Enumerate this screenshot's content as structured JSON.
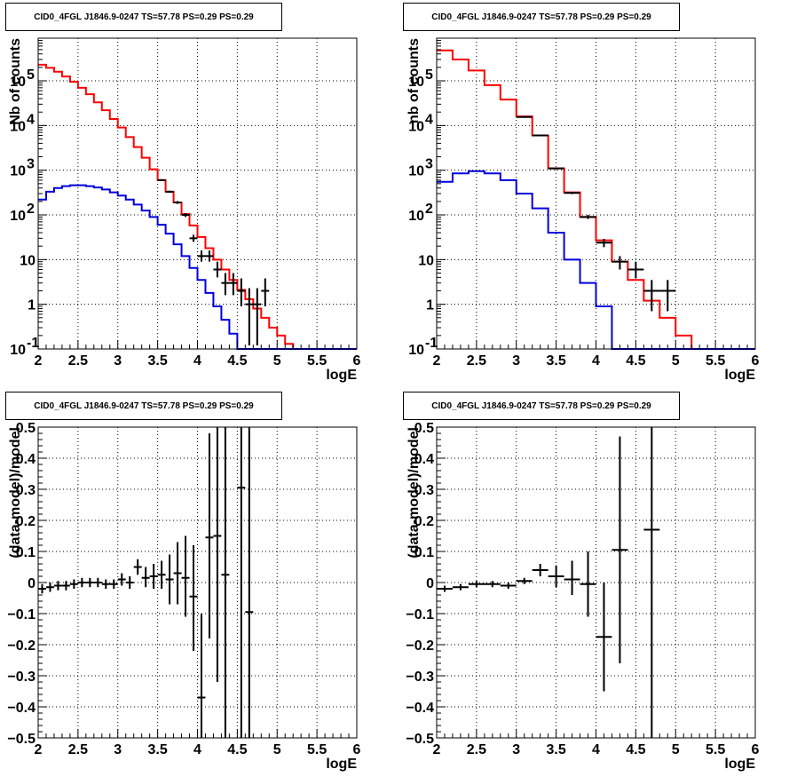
{
  "title": "CID0_4FGL J1846.9-0247 TS=57.78 PS=0.29 PS=0.29",
  "colors": {
    "model_total": "#ff0000",
    "model_source": "#0000dd",
    "data": "#000000"
  },
  "chart_data": [
    {
      "type": "line",
      "panel": "top-left",
      "title": "CID0_4FGL J1846.9-0247 TS=57.78 PS=0.29 PS=0.29",
      "xlabel": "logE",
      "ylabel": "Nb of counts",
      "xlim": [
        2,
        6
      ],
      "ylim": [
        0.1,
        900000
      ],
      "yscale": "log",
      "grid": true,
      "x_ticks": [
        "2",
        "2.5",
        "3",
        "3.5",
        "4",
        "4.5",
        "5",
        "5.5",
        "6"
      ],
      "y_ticks": [
        {
          "value": 0.1,
          "label": "10",
          "sup": "-1"
        },
        {
          "value": 1,
          "label": "1",
          "sup": ""
        },
        {
          "value": 10,
          "label": "10",
          "sup": ""
        },
        {
          "value": 100,
          "label": "10",
          "sup": "2"
        },
        {
          "value": 1000,
          "label": "10",
          "sup": "3"
        },
        {
          "value": 10000,
          "label": "10",
          "sup": "4"
        },
        {
          "value": 100000,
          "label": "10",
          "sup": "5"
        }
      ],
      "bin_edges": [
        2.0,
        2.1,
        2.2,
        2.3,
        2.4,
        2.5,
        2.6,
        2.7,
        2.8,
        2.9,
        3.0,
        3.1,
        3.2,
        3.3,
        3.4,
        3.5,
        3.6,
        3.7,
        3.8,
        3.9,
        4.0,
        4.1,
        4.2,
        4.3,
        4.4,
        4.5,
        4.6,
        4.7,
        4.8,
        4.9,
        5.0,
        5.1,
        5.2,
        5.3,
        5.4,
        5.5,
        5.6,
        5.7,
        5.8,
        5.9,
        6.0
      ],
      "series": [
        {
          "name": "",
          "color": "#ff0000",
          "style": "step",
          "values": [
            230000,
            195000,
            160000,
            125000,
            95000,
            70000,
            50000,
            33000,
            22000,
            14000,
            9000,
            5500,
            3300,
            1900,
            1050,
            600,
            330,
            190,
            105,
            58,
            32,
            18,
            10,
            6,
            3.5,
            2.1,
            1.3,
            0.8,
            0.5,
            0.3,
            0.2,
            0.13,
            0.1,
            0.1,
            0.1,
            0.1,
            0.1,
            0.1,
            0.1,
            0.1
          ]
        },
        {
          "name": "",
          "color": "#0000dd",
          "style": "step",
          "values": [
            220,
            330,
            400,
            440,
            460,
            460,
            440,
            410,
            370,
            320,
            270,
            220,
            170,
            125,
            90,
            60,
            38,
            22,
            12,
            6.5,
            3.5,
            1.8,
            0.9,
            0.45,
            0.22,
            0.1,
            0.1,
            0.1,
            0.1,
            0.1,
            0.1,
            0.1,
            0.1,
            0.1,
            0.1,
            0.1,
            0.1,
            0.1,
            0.1,
            0.1
          ]
        }
      ],
      "points": [
        {
          "x": 3.55,
          "y": 600,
          "ylo": 575,
          "yhi": 625
        },
        {
          "x": 3.65,
          "y": 330,
          "ylo": 312,
          "yhi": 348
        },
        {
          "x": 3.75,
          "y": 190,
          "ylo": 176,
          "yhi": 204
        },
        {
          "x": 3.85,
          "y": 100,
          "ylo": 90,
          "yhi": 110
        },
        {
          "x": 3.95,
          "y": 30,
          "ylo": 25,
          "yhi": 36
        },
        {
          "x": 4.05,
          "y": 12,
          "ylo": 9,
          "yhi": 16
        },
        {
          "x": 4.15,
          "y": 12,
          "ylo": 9,
          "yhi": 16
        },
        {
          "x": 4.25,
          "y": 6,
          "ylo": 4,
          "yhi": 9
        },
        {
          "x": 4.35,
          "y": 3,
          "ylo": 1.6,
          "yhi": 5
        },
        {
          "x": 4.45,
          "y": 3,
          "ylo": 1.6,
          "yhi": 5
        },
        {
          "x": 4.55,
          "y": 2,
          "ylo": 0.9,
          "yhi": 3.8
        },
        {
          "x": 4.65,
          "y": 1,
          "ylo": 0.12,
          "yhi": 2.3
        },
        {
          "x": 4.75,
          "y": 1,
          "ylo": 0.12,
          "yhi": 2.3
        },
        {
          "x": 4.85,
          "y": 2,
          "ylo": 0.9,
          "yhi": 3.8
        }
      ]
    },
    {
      "type": "line",
      "panel": "top-right",
      "title": "CID0_4FGL J1846.9-0247 TS=57.78 PS=0.29 PS=0.29",
      "xlabel": "logE",
      "ylabel": "nb of counts",
      "xlim": [
        2,
        6
      ],
      "ylim": [
        0.1,
        900000
      ],
      "yscale": "log",
      "grid": true,
      "x_ticks": [
        "2",
        "2.5",
        "3",
        "3.5",
        "4",
        "4.5",
        "5",
        "5.5",
        "6"
      ],
      "y_ticks": [
        {
          "value": 0.1,
          "label": "10",
          "sup": "-1"
        },
        {
          "value": 1,
          "label": "1",
          "sup": ""
        },
        {
          "value": 10,
          "label": "10",
          "sup": ""
        },
        {
          "value": 100,
          "label": "10",
          "sup": "2"
        },
        {
          "value": 1000,
          "label": "10",
          "sup": "3"
        },
        {
          "value": 10000,
          "label": "10",
          "sup": "4"
        },
        {
          "value": 100000,
          "label": "10",
          "sup": "5"
        }
      ],
      "bin_edges": [
        2.0,
        2.2,
        2.4,
        2.6,
        2.8,
        3.0,
        3.2,
        3.4,
        3.6,
        3.8,
        4.0,
        4.2,
        4.4,
        4.6,
        4.8,
        5.0,
        5.2,
        5.4,
        5.6,
        5.8,
        6.0
      ],
      "series": [
        {
          "name": "",
          "color": "#ff0000",
          "style": "step",
          "values": [
            480000,
            300000,
            170000,
            80000,
            38000,
            16000,
            6000,
            1100,
            320,
            90,
            27,
            9,
            3.5,
            1.2,
            0.5,
            0.2,
            0.1,
            0.1,
            0.1,
            0.1
          ]
        },
        {
          "name": "",
          "color": "#0000dd",
          "style": "step",
          "values": [
            550,
            850,
            950,
            850,
            600,
            300,
            140,
            40,
            10,
            3,
            0.9,
            0.1,
            0.1,
            0.1,
            0.1,
            0.1,
            0.1,
            0.1,
            0.1,
            0.1
          ]
        }
      ],
      "points": [
        {
          "x": 3.1,
          "y": 15500,
          "ylo": 15200,
          "yhi": 15800
        },
        {
          "x": 3.3,
          "y": 6000,
          "ylo": 5800,
          "yhi": 6200
        },
        {
          "x": 3.5,
          "y": 1100,
          "ylo": 1070,
          "yhi": 1130
        },
        {
          "x": 3.7,
          "y": 310,
          "ylo": 292,
          "yhi": 328
        },
        {
          "x": 3.9,
          "y": 90,
          "ylo": 81,
          "yhi": 100
        },
        {
          "x": 4.1,
          "y": 24,
          "ylo": 19,
          "yhi": 29
        },
        {
          "x": 4.3,
          "y": 9,
          "ylo": 6,
          "yhi": 12
        },
        {
          "x": 4.5,
          "y": 6,
          "ylo": 3.8,
          "yhi": 9
        },
        {
          "x": 4.7,
          "y": 2,
          "ylo": 0.7,
          "yhi": 3.5
        },
        {
          "x": 4.9,
          "y": 2,
          "ylo": 0.7,
          "yhi": 3.5
        }
      ]
    },
    {
      "type": "scatter",
      "panel": "bottom-left",
      "title": "CID0_4FGL J1846.9-0247 TS=57.78 PS=0.29 PS=0.29",
      "xlabel": "logE",
      "ylabel": "(data-model)/model",
      "xlim": [
        2,
        6
      ],
      "ylim": [
        -0.5,
        0.5
      ],
      "yscale": "linear",
      "grid": true,
      "x_ticks": [
        "2",
        "2.5",
        "3",
        "3.5",
        "4",
        "4.5",
        "5",
        "5.5",
        "6"
      ],
      "y_ticks": [
        {
          "value": -0.5,
          "label": "−0.5",
          "sup": ""
        },
        {
          "value": -0.4,
          "label": "−0.4",
          "sup": ""
        },
        {
          "value": -0.3,
          "label": "−0.3",
          "sup": ""
        },
        {
          "value": -0.2,
          "label": "−0.2",
          "sup": ""
        },
        {
          "value": -0.1,
          "label": "−0.1",
          "sup": ""
        },
        {
          "value": 0,
          "label": "0",
          "sup": ""
        },
        {
          "value": 0.1,
          "label": "0.1",
          "sup": ""
        },
        {
          "value": 0.2,
          "label": "0.2",
          "sup": ""
        },
        {
          "value": 0.3,
          "label": "0.3",
          "sup": ""
        },
        {
          "value": 0.4,
          "label": "0.4",
          "sup": ""
        },
        {
          "value": 0.5,
          "label": "0.5",
          "sup": ""
        }
      ],
      "xerr": 0.05,
      "points": [
        {
          "x": 2.05,
          "y": -0.02,
          "ylo": -0.035,
          "yhi": -0.005
        },
        {
          "x": 2.15,
          "y": -0.015,
          "ylo": -0.03,
          "yhi": 0.0
        },
        {
          "x": 2.25,
          "y": -0.01,
          "ylo": -0.025,
          "yhi": 0.005
        },
        {
          "x": 2.35,
          "y": -0.01,
          "ylo": -0.025,
          "yhi": 0.005
        },
        {
          "x": 2.45,
          "y": -0.005,
          "ylo": -0.02,
          "yhi": 0.01
        },
        {
          "x": 2.55,
          "y": 0.0,
          "ylo": -0.015,
          "yhi": 0.015
        },
        {
          "x": 2.65,
          "y": 0.0,
          "ylo": -0.015,
          "yhi": 0.015
        },
        {
          "x": 2.75,
          "y": 0.0,
          "ylo": -0.015,
          "yhi": 0.015
        },
        {
          "x": 2.85,
          "y": -0.005,
          "ylo": -0.02,
          "yhi": 0.01
        },
        {
          "x": 2.95,
          "y": -0.005,
          "ylo": -0.02,
          "yhi": 0.01
        },
        {
          "x": 3.05,
          "y": 0.01,
          "ylo": -0.01,
          "yhi": 0.03
        },
        {
          "x": 3.15,
          "y": 0.0,
          "ylo": -0.02,
          "yhi": 0.02
        },
        {
          "x": 3.25,
          "y": 0.05,
          "ylo": 0.025,
          "yhi": 0.075
        },
        {
          "x": 3.35,
          "y": 0.015,
          "ylo": -0.015,
          "yhi": 0.05
        },
        {
          "x": 3.45,
          "y": 0.02,
          "ylo": -0.02,
          "yhi": 0.06
        },
        {
          "x": 3.55,
          "y": 0.025,
          "ylo": -0.02,
          "yhi": 0.07
        },
        {
          "x": 3.65,
          "y": 0.01,
          "ylo": -0.07,
          "yhi": 0.09
        },
        {
          "x": 3.75,
          "y": 0.03,
          "ylo": -0.07,
          "yhi": 0.13
        },
        {
          "x": 3.85,
          "y": 0.015,
          "ylo": -0.11,
          "yhi": 0.15
        },
        {
          "x": 3.95,
          "y": -0.045,
          "ylo": -0.22,
          "yhi": 0.12
        },
        {
          "x": 4.05,
          "y": -0.37,
          "ylo": -0.5,
          "yhi": -0.1
        },
        {
          "x": 4.15,
          "y": 0.145,
          "ylo": -0.18,
          "yhi": 0.48
        },
        {
          "x": 4.25,
          "y": 0.15,
          "ylo": -0.32,
          "yhi": 0.5
        },
        {
          "x": 4.35,
          "y": 0.025,
          "ylo": -0.5,
          "yhi": 0.5
        },
        {
          "x": 4.55,
          "y": 0.305,
          "ylo": -0.5,
          "yhi": 0.5
        },
        {
          "x": 4.65,
          "y": -0.095,
          "ylo": -0.5,
          "yhi": 0.5
        }
      ]
    },
    {
      "type": "scatter",
      "panel": "bottom-right",
      "title": "CID0_4FGL J1846.9-0247 TS=57.78 PS=0.29 PS=0.29",
      "xlabel": "logE",
      "ylabel": "(data-model)/model",
      "xlim": [
        2,
        6
      ],
      "ylim": [
        -0.5,
        0.5
      ],
      "yscale": "linear",
      "grid": true,
      "x_ticks": [
        "2",
        "2.5",
        "3",
        "3.5",
        "4",
        "4.5",
        "5",
        "5.5",
        "6"
      ],
      "y_ticks": [
        {
          "value": -0.5,
          "label": "−0.5",
          "sup": ""
        },
        {
          "value": -0.4,
          "label": "−0.4",
          "sup": ""
        },
        {
          "value": -0.3,
          "label": "−0.3",
          "sup": ""
        },
        {
          "value": -0.2,
          "label": "−0.2",
          "sup": ""
        },
        {
          "value": -0.1,
          "label": "−0.1",
          "sup": ""
        },
        {
          "value": 0,
          "label": "0",
          "sup": ""
        },
        {
          "value": 0.1,
          "label": "0.1",
          "sup": ""
        },
        {
          "value": 0.2,
          "label": "0.2",
          "sup": ""
        },
        {
          "value": 0.3,
          "label": "0.3",
          "sup": ""
        },
        {
          "value": 0.4,
          "label": "0.4",
          "sup": ""
        },
        {
          "value": 0.5,
          "label": "0.5",
          "sup": ""
        }
      ],
      "xerr": 0.1,
      "points": [
        {
          "x": 2.1,
          "y": -0.02,
          "ylo": -0.03,
          "yhi": -0.01
        },
        {
          "x": 2.3,
          "y": -0.015,
          "ylo": -0.025,
          "yhi": -0.005
        },
        {
          "x": 2.5,
          "y": -0.005,
          "ylo": -0.015,
          "yhi": 0.005
        },
        {
          "x": 2.7,
          "y": -0.005,
          "ylo": -0.015,
          "yhi": 0.005
        },
        {
          "x": 2.9,
          "y": -0.01,
          "ylo": -0.02,
          "yhi": 0.0
        },
        {
          "x": 3.1,
          "y": 0.005,
          "ylo": -0.005,
          "yhi": 0.015
        },
        {
          "x": 3.3,
          "y": 0.04,
          "ylo": 0.02,
          "yhi": 0.06
        },
        {
          "x": 3.5,
          "y": 0.02,
          "ylo": -0.015,
          "yhi": 0.055
        },
        {
          "x": 3.7,
          "y": 0.01,
          "ylo": -0.04,
          "yhi": 0.07
        },
        {
          "x": 3.9,
          "y": -0.005,
          "ylo": -0.11,
          "yhi": 0.1
        },
        {
          "x": 4.1,
          "y": -0.175,
          "ylo": -0.35,
          "yhi": 0.0
        },
        {
          "x": 4.3,
          "y": 0.105,
          "ylo": -0.26,
          "yhi": 0.47
        },
        {
          "x": 4.7,
          "y": 0.17,
          "ylo": -0.5,
          "yhi": 0.5
        }
      ]
    }
  ]
}
